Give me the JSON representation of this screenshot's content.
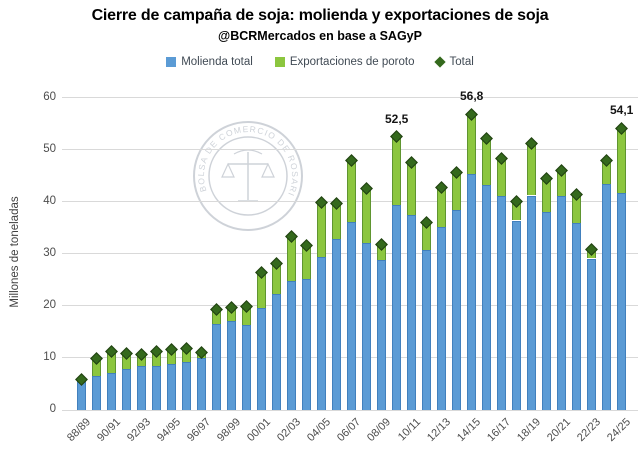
{
  "header": {
    "title": "Cierre de campaña de soja: molienda y exportaciones de soja",
    "subtitle": "@BCRMercados en base a SAGyP"
  },
  "legend": {
    "items": [
      {
        "label": "Molienda total",
        "marker": "square",
        "color": "#5b9bd5"
      },
      {
        "label": "Exportaciones de poroto",
        "marker": "square",
        "color": "#8cc63f"
      },
      {
        "label": "Total",
        "marker": "diamond",
        "color": "#34691c"
      }
    ]
  },
  "watermark": {
    "text": "BOLSA DE COMERCIO DE ROSARIO",
    "emblem": "scales-seal"
  },
  "chart_data": {
    "type": "bar",
    "subtype": "stacked-bar-with-total-markers",
    "title": "Cierre de campaña de soja: molienda y exportaciones de soja",
    "xlabel": "",
    "ylabel": "Millones de toneladas",
    "ylim": [
      0,
      60
    ],
    "y_ticks": [
      0,
      10,
      20,
      30,
      40,
      50,
      60
    ],
    "grid": "horizontal",
    "legend_position": "top",
    "categories": [
      "88/89",
      "89/90",
      "90/91",
      "91/92",
      "92/93",
      "93/94",
      "94/95",
      "95/96",
      "96/97",
      "97/98",
      "98/99",
      "99/00",
      "00/01",
      "01/02",
      "02/03",
      "03/04",
      "04/05",
      "05/06",
      "06/07",
      "07/08",
      "08/09",
      "09/10",
      "10/11",
      "11/12",
      "12/13",
      "13/14",
      "14/15",
      "15/16",
      "16/17",
      "17/18",
      "18/19",
      "19/20",
      "20/21",
      "21/22",
      "22/23",
      "23/24",
      "24/25"
    ],
    "x_tick_labels": [
      "88/89",
      "90/91",
      "92/93",
      "94/95",
      "96/97",
      "98/99",
      "00/01",
      "02/03",
      "04/05",
      "06/07",
      "08/09",
      "10/11",
      "12/13",
      "14/15",
      "16/17",
      "18/19",
      "20/21",
      "22/23",
      "24/25"
    ],
    "x_tick_every": 2,
    "series": [
      {
        "name": "Molienda total",
        "color": "#5b9bd5",
        "values": [
          5.4,
          6.6,
          7.2,
          7.8,
          8.5,
          8.4,
          8.9,
          9.3,
          10.0,
          16.6,
          17.0,
          16.4,
          19.5,
          22.2,
          24.8,
          25.1,
          29.4,
          32.8,
          36.1,
          32.0,
          28.9,
          39.3,
          37.5,
          30.7,
          35.1,
          38.5,
          45.3,
          43.2,
          41.2,
          36.4,
          41.2,
          38.0,
          41.2,
          35.9,
          29.1,
          43.5,
          41.6
        ]
      },
      {
        "name": "Exportaciones de poroto",
        "color": "#8cc63f",
        "values": [
          0.4,
          3.3,
          4.0,
          3.1,
          2.2,
          2.9,
          2.7,
          2.6,
          1.0,
          2.8,
          2.6,
          3.5,
          7.0,
          5.9,
          8.5,
          6.5,
          10.5,
          6.8,
          11.8,
          10.5,
          2.9,
          13.2,
          10.0,
          5.4,
          7.7,
          7.2,
          11.5,
          9.0,
          7.1,
          3.6,
          10.0,
          6.5,
          4.9,
          5.4,
          1.8,
          4.4,
          12.5
        ]
      }
    ],
    "total_markers": {
      "name": "Total",
      "shape": "diamond",
      "color": "#34691c",
      "values": [
        5.8,
        9.9,
        11.2,
        10.9,
        10.7,
        11.3,
        11.6,
        11.9,
        11.0,
        19.4,
        19.6,
        19.9,
        26.5,
        28.1,
        33.3,
        31.6,
        39.9,
        39.6,
        47.9,
        42.5,
        31.8,
        52.5,
        47.5,
        36.1,
        42.8,
        45.7,
        56.8,
        52.2,
        48.3,
        40.0,
        51.2,
        44.5,
        46.1,
        41.3,
        30.9,
        47.9,
        54.1
      ]
    },
    "annotations": [
      {
        "index": 21,
        "category": "09/10",
        "label": "52,5"
      },
      {
        "index": 26,
        "category": "14/15",
        "label": "56,8"
      },
      {
        "index": 36,
        "category": "24/25",
        "label": "54,1"
      }
    ]
  }
}
